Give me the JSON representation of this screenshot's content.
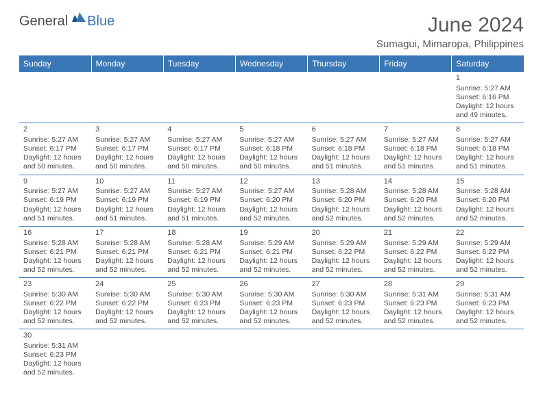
{
  "brand": {
    "part1": "General",
    "part2": "Blue"
  },
  "title": "June 2024",
  "location": "Sumagui, Mimaropa, Philippines",
  "header_bg": "#3a77b7",
  "header_fg": "#ffffff",
  "rule_color": "#3a77b7",
  "text_color": "#4a4a4a",
  "weekdays": [
    "Sunday",
    "Monday",
    "Tuesday",
    "Wednesday",
    "Thursday",
    "Friday",
    "Saturday"
  ],
  "weeks": [
    [
      null,
      null,
      null,
      null,
      null,
      null,
      {
        "d": "1",
        "sr": "Sunrise: 5:27 AM",
        "ss": "Sunset: 6:16 PM",
        "dl": "Daylight: 12 hours and 49 minutes."
      }
    ],
    [
      {
        "d": "2",
        "sr": "Sunrise: 5:27 AM",
        "ss": "Sunset: 6:17 PM",
        "dl": "Daylight: 12 hours and 50 minutes."
      },
      {
        "d": "3",
        "sr": "Sunrise: 5:27 AM",
        "ss": "Sunset: 6:17 PM",
        "dl": "Daylight: 12 hours and 50 minutes."
      },
      {
        "d": "4",
        "sr": "Sunrise: 5:27 AM",
        "ss": "Sunset: 6:17 PM",
        "dl": "Daylight: 12 hours and 50 minutes."
      },
      {
        "d": "5",
        "sr": "Sunrise: 5:27 AM",
        "ss": "Sunset: 6:18 PM",
        "dl": "Daylight: 12 hours and 50 minutes."
      },
      {
        "d": "6",
        "sr": "Sunrise: 5:27 AM",
        "ss": "Sunset: 6:18 PM",
        "dl": "Daylight: 12 hours and 51 minutes."
      },
      {
        "d": "7",
        "sr": "Sunrise: 5:27 AM",
        "ss": "Sunset: 6:18 PM",
        "dl": "Daylight: 12 hours and 51 minutes."
      },
      {
        "d": "8",
        "sr": "Sunrise: 5:27 AM",
        "ss": "Sunset: 6:18 PM",
        "dl": "Daylight: 12 hours and 51 minutes."
      }
    ],
    [
      {
        "d": "9",
        "sr": "Sunrise: 5:27 AM",
        "ss": "Sunset: 6:19 PM",
        "dl": "Daylight: 12 hours and 51 minutes."
      },
      {
        "d": "10",
        "sr": "Sunrise: 5:27 AM",
        "ss": "Sunset: 6:19 PM",
        "dl": "Daylight: 12 hours and 51 minutes."
      },
      {
        "d": "11",
        "sr": "Sunrise: 5:27 AM",
        "ss": "Sunset: 6:19 PM",
        "dl": "Daylight: 12 hours and 51 minutes."
      },
      {
        "d": "12",
        "sr": "Sunrise: 5:27 AM",
        "ss": "Sunset: 6:20 PM",
        "dl": "Daylight: 12 hours and 52 minutes."
      },
      {
        "d": "13",
        "sr": "Sunrise: 5:28 AM",
        "ss": "Sunset: 6:20 PM",
        "dl": "Daylight: 12 hours and 52 minutes."
      },
      {
        "d": "14",
        "sr": "Sunrise: 5:28 AM",
        "ss": "Sunset: 6:20 PM",
        "dl": "Daylight: 12 hours and 52 minutes."
      },
      {
        "d": "15",
        "sr": "Sunrise: 5:28 AM",
        "ss": "Sunset: 6:20 PM",
        "dl": "Daylight: 12 hours and 52 minutes."
      }
    ],
    [
      {
        "d": "16",
        "sr": "Sunrise: 5:28 AM",
        "ss": "Sunset: 6:21 PM",
        "dl": "Daylight: 12 hours and 52 minutes."
      },
      {
        "d": "17",
        "sr": "Sunrise: 5:28 AM",
        "ss": "Sunset: 6:21 PM",
        "dl": "Daylight: 12 hours and 52 minutes."
      },
      {
        "d": "18",
        "sr": "Sunrise: 5:28 AM",
        "ss": "Sunset: 6:21 PM",
        "dl": "Daylight: 12 hours and 52 minutes."
      },
      {
        "d": "19",
        "sr": "Sunrise: 5:29 AM",
        "ss": "Sunset: 6:21 PM",
        "dl": "Daylight: 12 hours and 52 minutes."
      },
      {
        "d": "20",
        "sr": "Sunrise: 5:29 AM",
        "ss": "Sunset: 6:22 PM",
        "dl": "Daylight: 12 hours and 52 minutes."
      },
      {
        "d": "21",
        "sr": "Sunrise: 5:29 AM",
        "ss": "Sunset: 6:22 PM",
        "dl": "Daylight: 12 hours and 52 minutes."
      },
      {
        "d": "22",
        "sr": "Sunrise: 5:29 AM",
        "ss": "Sunset: 6:22 PM",
        "dl": "Daylight: 12 hours and 52 minutes."
      }
    ],
    [
      {
        "d": "23",
        "sr": "Sunrise: 5:30 AM",
        "ss": "Sunset: 6:22 PM",
        "dl": "Daylight: 12 hours and 52 minutes."
      },
      {
        "d": "24",
        "sr": "Sunrise: 5:30 AM",
        "ss": "Sunset: 6:22 PM",
        "dl": "Daylight: 12 hours and 52 minutes."
      },
      {
        "d": "25",
        "sr": "Sunrise: 5:30 AM",
        "ss": "Sunset: 6:23 PM",
        "dl": "Daylight: 12 hours and 52 minutes."
      },
      {
        "d": "26",
        "sr": "Sunrise: 5:30 AM",
        "ss": "Sunset: 6:23 PM",
        "dl": "Daylight: 12 hours and 52 minutes."
      },
      {
        "d": "27",
        "sr": "Sunrise: 5:30 AM",
        "ss": "Sunset: 6:23 PM",
        "dl": "Daylight: 12 hours and 52 minutes."
      },
      {
        "d": "28",
        "sr": "Sunrise: 5:31 AM",
        "ss": "Sunset: 6:23 PM",
        "dl": "Daylight: 12 hours and 52 minutes."
      },
      {
        "d": "29",
        "sr": "Sunrise: 5:31 AM",
        "ss": "Sunset: 6:23 PM",
        "dl": "Daylight: 12 hours and 52 minutes."
      }
    ],
    [
      {
        "d": "30",
        "sr": "Sunrise: 5:31 AM",
        "ss": "Sunset: 6:23 PM",
        "dl": "Daylight: 12 hours and 52 minutes."
      },
      null,
      null,
      null,
      null,
      null,
      null
    ]
  ]
}
